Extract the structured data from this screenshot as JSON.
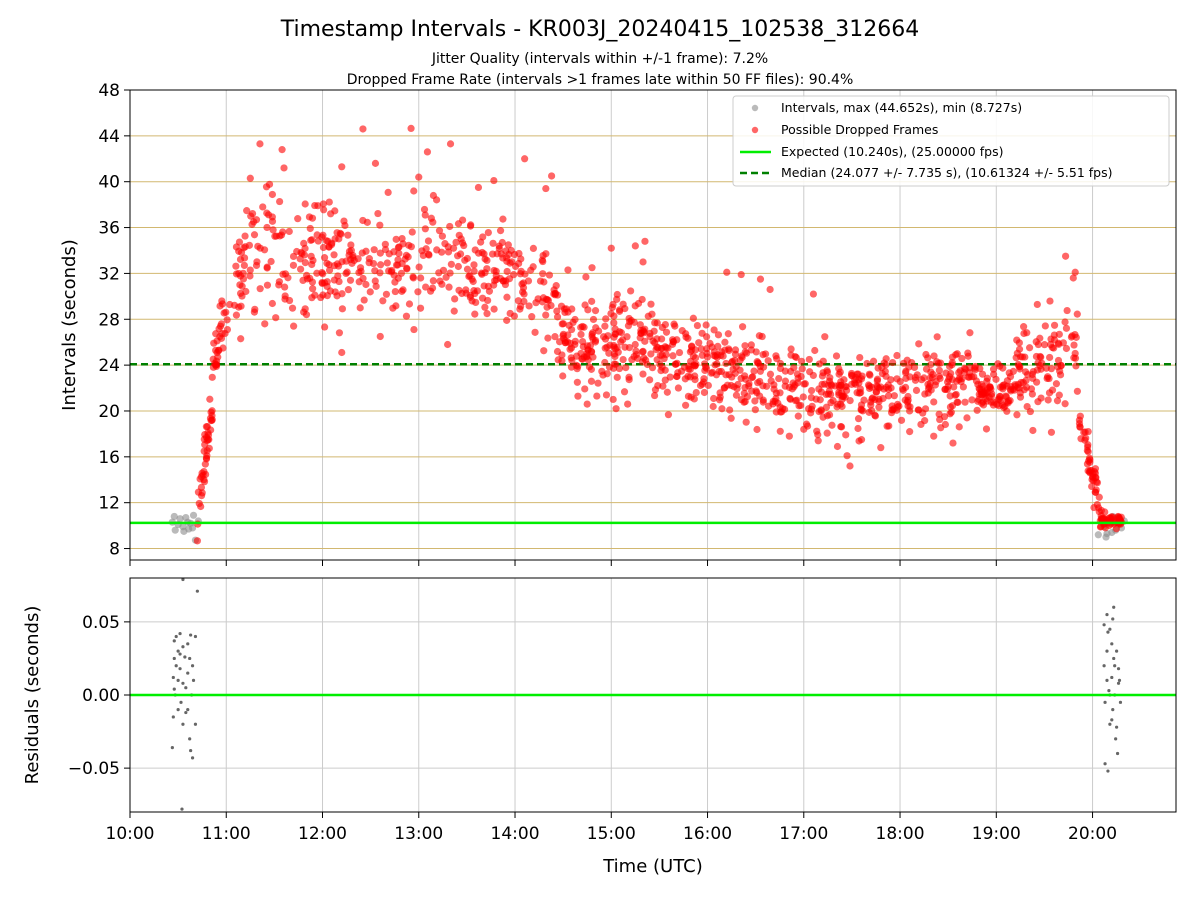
{
  "figure": {
    "title": "Timestamp Intervals - KR003J_20240415_102538_312664",
    "subtitle_1": "Jitter Quality (intervals within +/-1 frame): 7.2%",
    "subtitle_2": "Dropped Frame Rate (intervals >1 frames late within 50 FF files): 90.4%"
  },
  "colors": {
    "interval": "#8c8c8c",
    "dropped": "#ff0000",
    "expected": "#00ee00",
    "median": "#008000",
    "hgrid": "#d2b870",
    "grid": "#cccccc",
    "residual": "#666666"
  },
  "chart_data": [
    {
      "type": "scatter",
      "x_type": "time",
      "x_unit": "hours UTC",
      "xlim": [
        10.0,
        20.867
      ],
      "ylim": [
        7,
        48
      ],
      "yticks": [
        8,
        12,
        16,
        20,
        24,
        28,
        32,
        36,
        40,
        44,
        48
      ],
      "grid": true,
      "legend_position": "top-right",
      "ylabel": "Intervals (seconds)",
      "lines": [
        {
          "name": "Expected (10.240s), (25.00000 fps)",
          "y": 10.24,
          "style": "solid"
        },
        {
          "name": "Median (24.077 +/- 7.735 s), (10.61324 +/- 5.51 fps)",
          "y": 24.077,
          "style": "dashed"
        }
      ],
      "series": [
        {
          "name": "Intervals, max (44.652s), min (8.727s)",
          "max": 44.652,
          "min": 8.727,
          "points": [
            [
              10.44,
              10.3
            ],
            [
              10.47,
              9.6
            ],
            [
              10.5,
              10.1
            ],
            [
              10.52,
              10.6
            ],
            [
              10.55,
              9.9
            ],
            [
              10.58,
              10.7
            ],
            [
              10.61,
              9.7
            ],
            [
              10.63,
              10.2
            ],
            [
              10.66,
              10.9
            ],
            [
              10.68,
              8.73
            ],
            [
              10.71,
              10.4
            ],
            [
              10.46,
              10.8
            ],
            [
              10.56,
              9.5
            ],
            [
              10.6,
              10.3
            ],
            [
              10.65,
              9.8
            ],
            [
              20.06,
              9.2
            ],
            [
              20.09,
              10.6
            ],
            [
              20.12,
              9.9
            ],
            [
              20.15,
              9.3
            ],
            [
              20.18,
              10.3
            ],
            [
              20.21,
              10.8
            ],
            [
              20.24,
              9.6
            ],
            [
              20.27,
              10.1
            ],
            [
              20.3,
              9.8
            ],
            [
              20.33,
              10.4
            ],
            [
              20.14,
              9.0
            ],
            [
              20.2,
              9.4
            ],
            [
              20.26,
              10.7
            ]
          ]
        },
        {
          "name": "Possible Dropped Frames",
          "bands": [
            {
              "x0": 10.7,
              "x1": 10.97,
              "y0": 10.3,
              "y1": 29.0,
              "n": 60,
              "spread": 1.4
            },
            {
              "x0": 10.85,
              "x1": 11.2,
              "y0": 24.0,
              "y1": 34.0,
              "n": 24,
              "spread": 2.5
            },
            {
              "x0": 11.1,
              "x1": 12.0,
              "y0": 33.5,
              "y1": 33.0,
              "n": 110,
              "spread": 3.2
            },
            {
              "x0": 12.0,
              "x1": 13.0,
              "y0": 33.0,
              "y1": 33.0,
              "n": 130,
              "spread": 3.0
            },
            {
              "x0": 13.0,
              "x1": 14.0,
              "y0": 33.5,
              "y1": 32.0,
              "n": 130,
              "spread": 3.0
            },
            {
              "x0": 14.0,
              "x1": 14.45,
              "y0": 32.0,
              "y1": 29.5,
              "n": 50,
              "spread": 3.0
            },
            {
              "x0": 14.4,
              "x1": 15.5,
              "y0": 26.5,
              "y1": 25.5,
              "n": 190,
              "spread": 2.7
            },
            {
              "x0": 15.5,
              "x1": 16.6,
              "y0": 25.0,
              "y1": 22.5,
              "n": 190,
              "spread": 2.5
            },
            {
              "x0": 16.6,
              "x1": 17.7,
              "y0": 22.0,
              "y1": 21.5,
              "n": 170,
              "spread": 2.3
            },
            {
              "x0": 17.7,
              "x1": 18.8,
              "y0": 22.0,
              "y1": 22.5,
              "n": 170,
              "spread": 2.3
            },
            {
              "x0": 18.8,
              "x1": 19.2,
              "y0": 21.0,
              "y1": 22.0,
              "n": 80,
              "spread": 1.4
            },
            {
              "x0": 19.2,
              "x1": 19.85,
              "y0": 23.5,
              "y1": 25.0,
              "n": 100,
              "spread": 2.8
            },
            {
              "x0": 19.85,
              "x1": 20.1,
              "y0": 19.0,
              "y1": 11.0,
              "n": 50,
              "spread": 1.2
            },
            {
              "x0": 20.08,
              "x1": 20.3,
              "y0": 10.6,
              "y1": 10.4,
              "n": 45,
              "spread": 0.35
            }
          ],
          "points": [
            [
              11.35,
              43.3
            ],
            [
              11.58,
              42.8
            ],
            [
              12.42,
              44.6
            ],
            [
              12.92,
              44.65
            ],
            [
              13.33,
              43.3
            ],
            [
              13.09,
              42.6
            ],
            [
              14.1,
              42.0
            ],
            [
              12.55,
              41.6
            ],
            [
              12.2,
              41.3
            ],
            [
              11.6,
              41.2
            ],
            [
              14.38,
              40.5
            ],
            [
              13.0,
              40.4
            ],
            [
              13.78,
              40.1
            ],
            [
              11.25,
              40.3
            ],
            [
              13.62,
              39.5
            ],
            [
              14.32,
              39.4
            ],
            [
              19.72,
              33.5
            ],
            [
              19.82,
              32.1
            ],
            [
              19.8,
              31.6
            ],
            [
              15.35,
              34.8
            ],
            [
              15.25,
              34.4
            ],
            [
              15.0,
              34.2
            ],
            [
              15.33,
              33.0
            ],
            [
              14.55,
              32.3
            ],
            [
              14.8,
              32.5
            ],
            [
              16.2,
              32.1
            ],
            [
              16.35,
              31.9
            ],
            [
              16.55,
              31.5
            ],
            [
              16.65,
              30.6
            ],
            [
              17.1,
              30.2
            ],
            [
              17.48,
              15.2
            ],
            [
              17.45,
              16.1
            ],
            [
              17.35,
              16.9
            ],
            [
              17.6,
              17.5
            ],
            [
              17.15,
              17.4
            ],
            [
              17.8,
              16.8
            ],
            [
              18.55,
              17.2
            ],
            [
              18.35,
              17.8
            ],
            [
              18.1,
              18.2
            ],
            [
              19.38,
              18.3
            ],
            [
              16.85,
              17.8
            ],
            [
              17.0,
              18.4
            ],
            [
              12.2,
              25.1
            ],
            [
              12.95,
              27.1
            ],
            [
              13.3,
              25.8
            ],
            [
              12.6,
              26.5
            ],
            [
              11.4,
              27.6
            ],
            [
              11.7,
              27.4
            ],
            [
              11.15,
              26.3
            ],
            [
              14.95,
              21.4
            ],
            [
              15.17,
              20.6
            ],
            [
              15.05,
              20.2
            ],
            [
              14.85,
              21.3
            ],
            [
              14.75,
              20.6
            ]
          ]
        }
      ]
    },
    {
      "type": "scatter",
      "x_type": "time",
      "x_unit": "hours UTC",
      "xlim": [
        10.0,
        20.867
      ],
      "ylim": [
        -0.08,
        0.08
      ],
      "yticks": [
        -0.05,
        0.0,
        0.05
      ],
      "ytick_labels": [
        "−0.05",
        "0.00",
        "0.05"
      ],
      "xticks": [
        10,
        11,
        12,
        13,
        14,
        15,
        16,
        17,
        18,
        19,
        20
      ],
      "xtick_labels": [
        "10:00",
        "11:00",
        "12:00",
        "13:00",
        "14:00",
        "15:00",
        "16:00",
        "17:00",
        "18:00",
        "19:00",
        "20:00"
      ],
      "grid": true,
      "xlabel": "Time (UTC)",
      "ylabel": "Residuals (seconds)",
      "zero_line": 0.0,
      "series": [
        {
          "name": "residuals",
          "points": [
            [
              10.46,
              0.037
            ],
            [
              10.46,
              0.025
            ],
            [
              10.45,
              0.012
            ],
            [
              10.47,
              0.0
            ],
            [
              10.45,
              -0.015
            ],
            [
              10.44,
              -0.036
            ],
            [
              10.48,
              0.04
            ],
            [
              10.48,
              0.02
            ],
            [
              10.5,
              0.03
            ],
            [
              10.5,
              0.01
            ],
            [
              10.5,
              -0.01
            ],
            [
              10.52,
              0.042
            ],
            [
              10.52,
              0.018
            ],
            [
              10.53,
              -0.005
            ],
            [
              10.55,
              0.033
            ],
            [
              10.55,
              0.008
            ],
            [
              10.55,
              -0.02
            ],
            [
              10.54,
              -0.078
            ],
            [
              10.57,
              0.026
            ],
            [
              10.58,
              0.005
            ],
            [
              10.6,
              0.035
            ],
            [
              10.6,
              0.015
            ],
            [
              10.6,
              -0.01
            ],
            [
              10.62,
              0.025
            ],
            [
              10.62,
              -0.03
            ],
            [
              10.63,
              0.041
            ],
            [
              10.64,
              0.0
            ],
            [
              10.65,
              0.02
            ],
            [
              10.65,
              -0.043
            ],
            [
              10.66,
              0.01
            ],
            [
              10.68,
              0.04
            ],
            [
              10.68,
              -0.02
            ],
            [
              10.7,
              0.071
            ],
            [
              10.55,
              0.079
            ],
            [
              10.58,
              -0.012
            ],
            [
              10.63,
              -0.038
            ],
            [
              10.46,
              0.004
            ],
            [
              10.52,
              0.028
            ],
            [
              20.12,
              0.048
            ],
            [
              20.12,
              0.02
            ],
            [
              20.13,
              -0.005
            ],
            [
              20.13,
              -0.047
            ],
            [
              20.15,
              0.055
            ],
            [
              20.15,
              0.03
            ],
            [
              20.15,
              0.01
            ],
            [
              20.16,
              -0.052
            ],
            [
              20.18,
              0.045
            ],
            [
              20.18,
              0.0
            ],
            [
              20.18,
              -0.02
            ],
            [
              20.2,
              0.035
            ],
            [
              20.2,
              0.012
            ],
            [
              20.21,
              -0.01
            ],
            [
              20.22,
              0.025
            ],
            [
              20.22,
              0.06
            ],
            [
              20.23,
              0.0
            ],
            [
              20.24,
              -0.03
            ],
            [
              20.25,
              0.03
            ],
            [
              20.26,
              -0.04
            ],
            [
              20.27,
              0.018
            ],
            [
              20.27,
              0.008
            ],
            [
              20.28,
              0.01
            ],
            [
              20.29,
              -0.005
            ],
            [
              20.2,
              -0.017
            ],
            [
              20.16,
              0.043
            ],
            [
              20.23,
              0.02
            ],
            [
              20.25,
              -0.022
            ],
            [
              20.17,
              0.003
            ],
            [
              20.21,
              0.052
            ]
          ]
        }
      ]
    }
  ]
}
